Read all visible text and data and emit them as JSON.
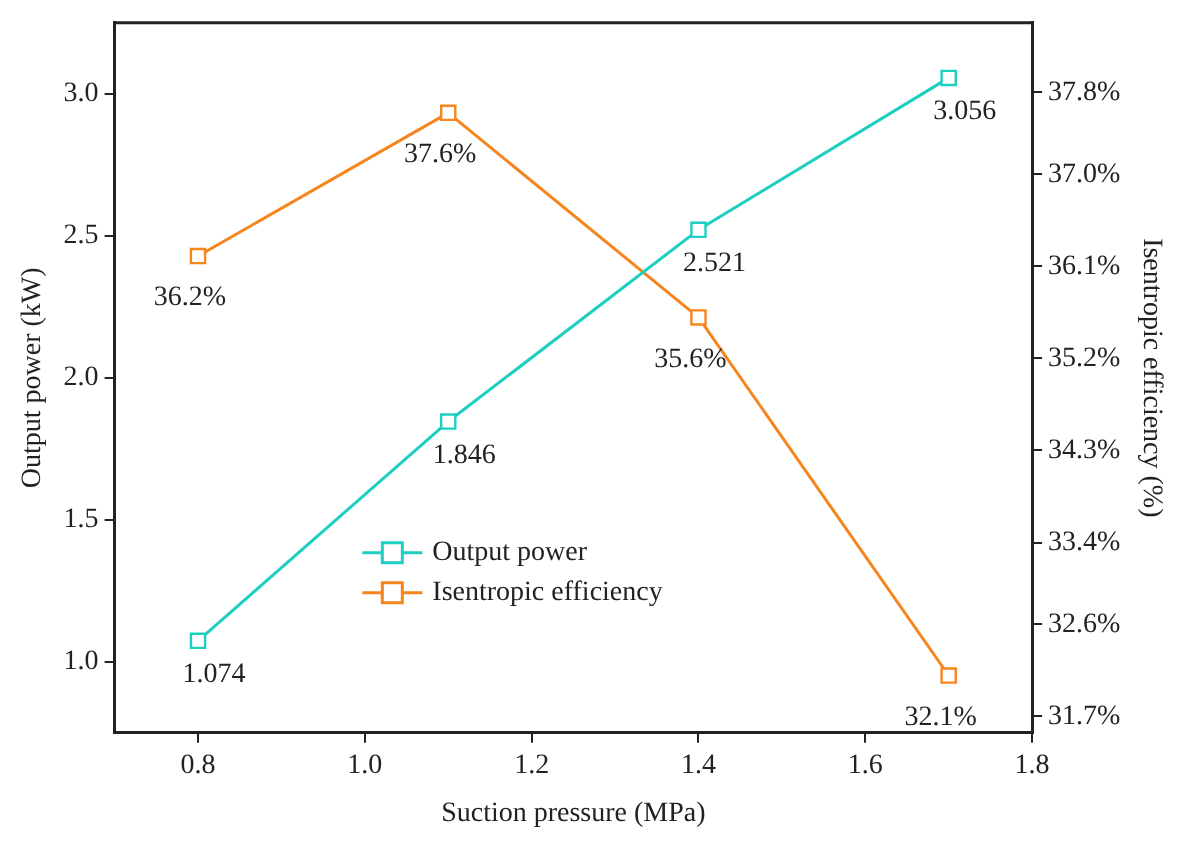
{
  "chart_data": {
    "type": "line",
    "xlabel": "Suction pressure (MPa)",
    "ylabel": "Output power (kW)",
    "y2label": "Isentropic efficiency (%)",
    "x": [
      0.8,
      1.1,
      1.4,
      1.7
    ],
    "series": [
      {
        "name": "Output power",
        "color": "#1ccfc0",
        "values": [
          1.074,
          1.846,
          2.521,
          3.056
        ],
        "value_labels": [
          "1.074",
          "1.846",
          "2.521",
          "3.056"
        ]
      },
      {
        "name": "Isentropic efficiency",
        "color": "#f7851e",
        "axis": "y2",
        "values": [
          36.2,
          37.6,
          35.6,
          32.1
        ],
        "value_labels": [
          "36.2%",
          "37.6%",
          "35.6%",
          "32.1%"
        ]
      }
    ],
    "xlim": [
      0.7,
      1.8
    ],
    "xticks": [
      0.8,
      {
        "value": 1,
        "label": "1.0"
      },
      1.2,
      1.4,
      1.6,
      1.8
    ],
    "ylim": [
      0.75,
      3.25
    ],
    "yticks": [
      {
        "value": 1,
        "label": "1.0"
      },
      {
        "value": 1.5,
        "label": "1.5"
      },
      {
        "value": 2,
        "label": "2.0"
      },
      {
        "value": 2.5,
        "label": "2.5"
      },
      {
        "value": 3,
        "label": "3.0"
      }
    ],
    "y2lim": [
      31.54,
      38.48
    ],
    "y2ticks": [
      {
        "value": 31.7,
        "label": "31.7%"
      },
      {
        "value": 32.6,
        "label": "32.6%"
      },
      {
        "value": 33.4,
        "label": "33.4%"
      },
      {
        "value": 34.3,
        "label": "34.3%"
      },
      {
        "value": 35.2,
        "label": "35.2%"
      },
      {
        "value": 36.1,
        "label": "36.1%"
      },
      {
        "value": 37.0,
        "label": "37.0%"
      },
      {
        "value": 37.8,
        "label": "37.8%"
      }
    ],
    "grid": false,
    "legend": "bottom",
    "marker": "square",
    "line_style": "solid"
  }
}
